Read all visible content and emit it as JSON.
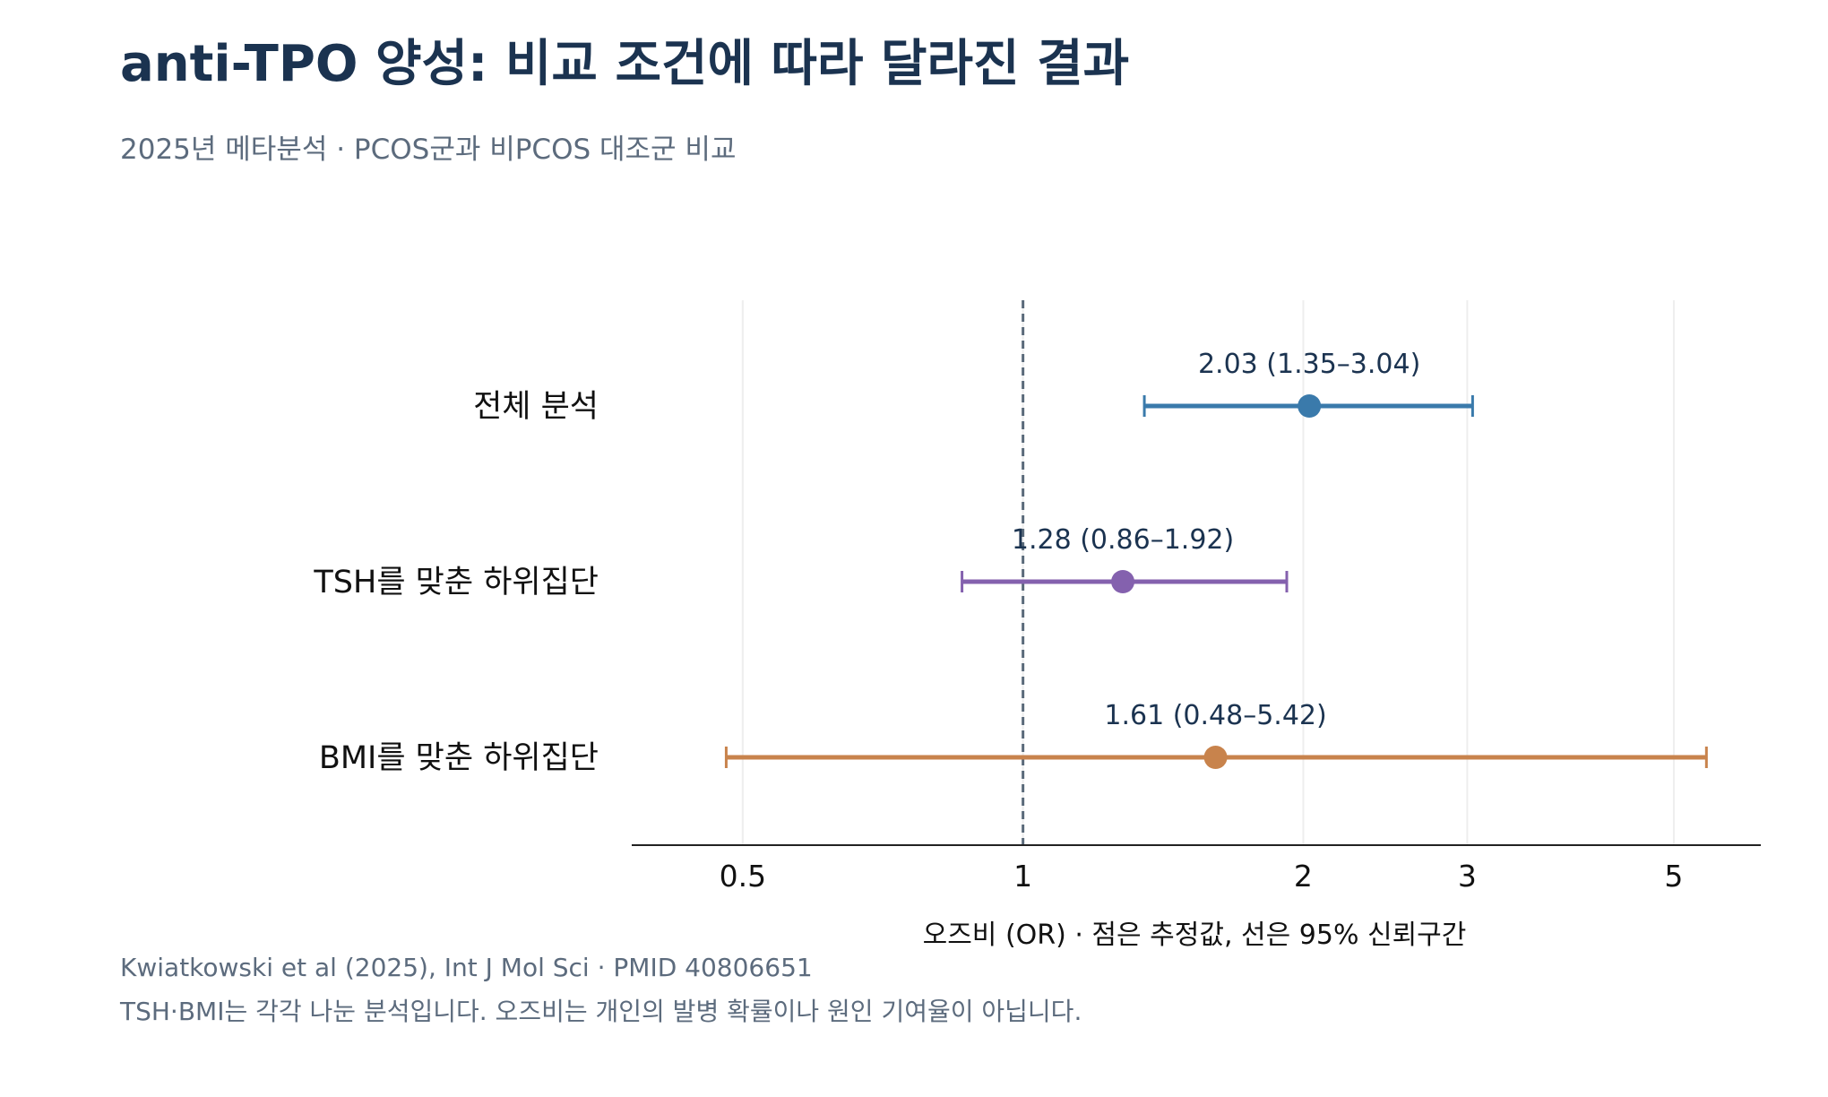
{
  "chart_data": {
    "type": "forest",
    "title": "anti-TPO 양성: 비교 조건에 따라 달라진 결과",
    "subtitle": "2025년 메타분석 · PCOS군과 비PCOS 대조군 비교",
    "xlabel": "오즈비 (OR) · 점은 추정값, 선은 95% 신뢰구간",
    "x_scale": "log",
    "xlim": [
      0.38,
      6.2
    ],
    "x_ticks": [
      0.5,
      1,
      2,
      3,
      5
    ],
    "x_tick_labels": [
      "0.5",
      "1",
      "2",
      "3",
      "5"
    ],
    "reference_line": 1,
    "grid": "vertical",
    "series": [
      {
        "category": "전체 분석",
        "or": 2.03,
        "ci_low": 1.35,
        "ci_high": 3.04,
        "label": "2.03  (1.35–3.04)",
        "color": "#3a7aab"
      },
      {
        "category": "TSH를 맞춘 하위집단",
        "or": 1.28,
        "ci_low": 0.86,
        "ci_high": 1.92,
        "label": "1.28  (0.86–1.92)",
        "color": "#8461ae"
      },
      {
        "category": "BMI를 맞춘 하위집단",
        "or": 1.61,
        "ci_low": 0.48,
        "ci_high": 5.42,
        "label": "1.61  (0.48–5.42)",
        "color": "#c8834c"
      }
    ]
  },
  "footer": {
    "source": "Kwiatkowski et al (2025), Int J Mol Sci · PMID 40806651",
    "note": "TSH·BMI는 각각 나눈 분석입니다. 오즈비는 개인의 발병 확률이나 원인 기여율이 아닙니다."
  },
  "colors": {
    "title": "#1b3350",
    "muted": "#5c6b7d",
    "reference_line": "#5a6a7a",
    "grid": "#eeeeee",
    "axis": "#222222"
  }
}
